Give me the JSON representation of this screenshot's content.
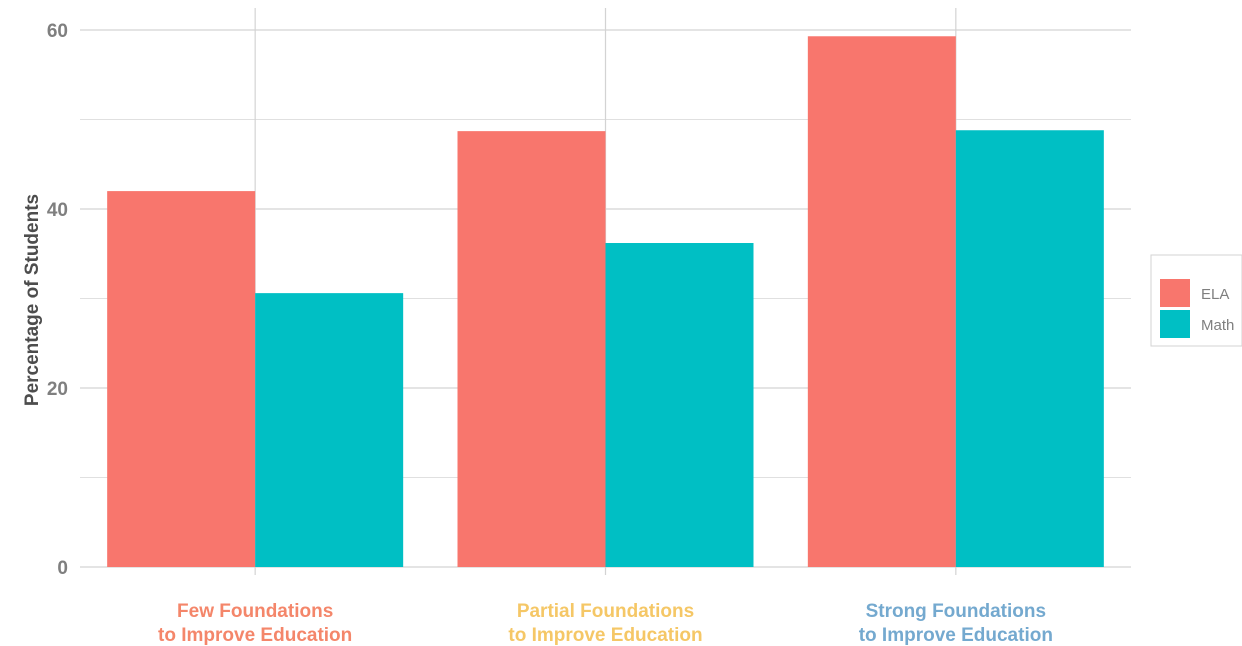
{
  "chart_data": {
    "type": "bar",
    "categories": [
      {
        "line1": "Few Foundations",
        "line2": "to Improve Education",
        "color": "#f4866a"
      },
      {
        "line1": "Partial Foundations",
        "line2": "to Improve Education",
        "color": "#f5c766"
      },
      {
        "line1": "Strong Foundations",
        "line2": "to Improve Education",
        "color": "#74a9cf"
      }
    ],
    "series": [
      {
        "name": "ELA",
        "color": "#f8766d",
        "values": [
          42,
          48.7,
          59.3
        ]
      },
      {
        "name": "Math",
        "color": "#00bfc4",
        "values": [
          30.6,
          36.2,
          48.8
        ]
      }
    ],
    "ylabel": "Percentage of Students",
    "ylim": [
      0,
      60
    ],
    "yticks": [
      0,
      20,
      40,
      60
    ],
    "grid": true,
    "legend_position": "right"
  }
}
